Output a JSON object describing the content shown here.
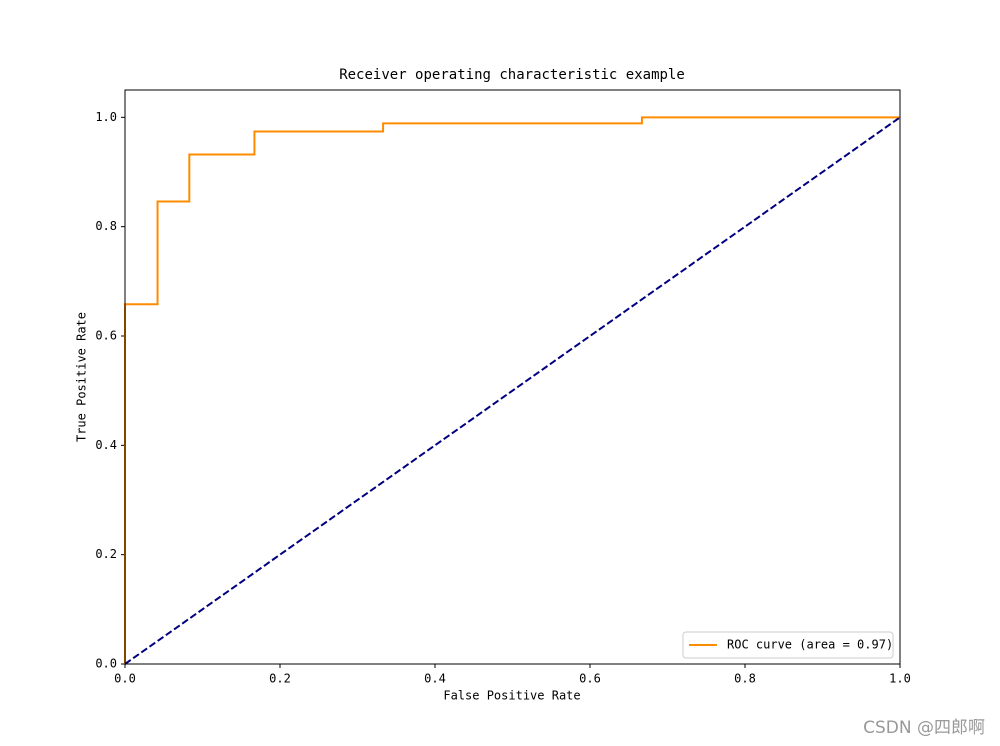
{
  "chart_data": {
    "type": "line",
    "title": "Receiver operating characteristic example",
    "x_label": "False Positive Rate",
    "y_label": "True Positive Rate",
    "xlim": [
      0,
      1
    ],
    "ylim": [
      0,
      1.05
    ],
    "xticks": [
      {
        "value": 0,
        "label": "0.0"
      },
      0.2,
      0.4,
      0.6,
      0.8,
      {
        "value": 1,
        "label": "1.0"
      }
    ],
    "yticks": [
      {
        "value": 0,
        "label": "0.0"
      },
      0.2,
      0.4,
      0.6,
      0.8,
      {
        "value": 1,
        "label": "1.0"
      }
    ],
    "grid": false,
    "legend": "lower right",
    "series": [
      {
        "name": "ROC curve (area = 0.97)",
        "color": "#ff8c00",
        "linestyle": "solid",
        "x": [
          0,
          0,
          0.042,
          0.042,
          0.083,
          0.083,
          0.167,
          0.167,
          0.333,
          0.333,
          0.667,
          0.667,
          1
        ],
        "values": [
          0,
          0.658,
          0.658,
          0.846,
          0.846,
          0.932,
          0.932,
          0.974,
          0.974,
          0.989,
          0.989,
          1,
          1
        ]
      },
      {
        "color": "#000080",
        "linestyle": "dashed",
        "x": [
          0,
          1
        ],
        "values": [
          0,
          1
        ]
      }
    ],
    "watermark": "CSDN @四郎啊"
  }
}
